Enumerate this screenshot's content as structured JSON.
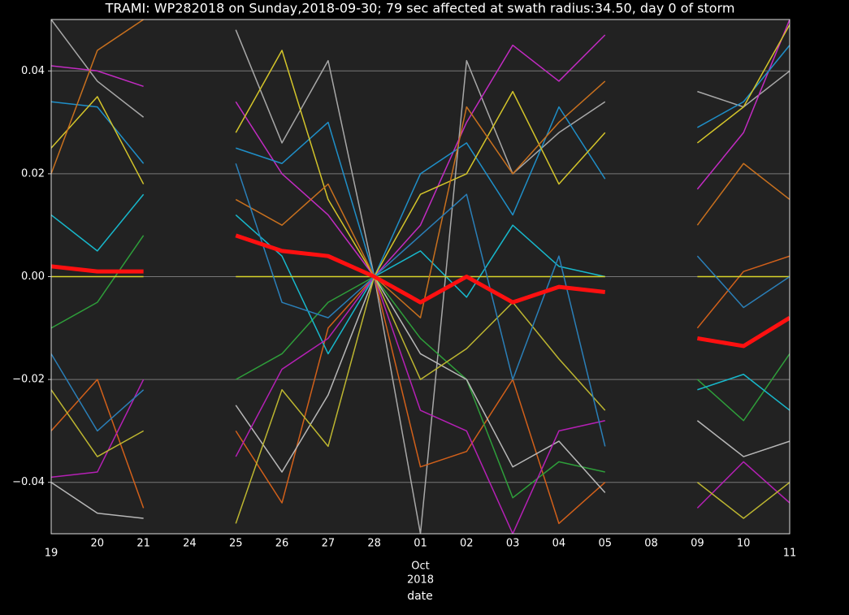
{
  "chart_data": {
    "type": "line",
    "title": "TRAMI: WP282018 on Sunday,2018-09-30; 79 sec affected at swath radius:34.50, day 0 of storm",
    "x_label": "date",
    "categories": [
      "19",
      "20",
      "21",
      "24",
      "25",
      "26",
      "27",
      "28",
      "01",
      "02",
      "03",
      "04",
      "05",
      "08",
      "09",
      "10",
      "11"
    ],
    "x_month_label": "Oct",
    "x_year_label": "2018",
    "ylim": [
      -0.05,
      0.05
    ],
    "yticks": [
      {
        "value": -0.04,
        "label": "−0.04"
      },
      {
        "value": -0.02,
        "label": "−0.02"
      },
      {
        "value": 0,
        "label": "0.00"
      },
      0.02,
      0.04
    ],
    "grid": true,
    "series": [
      {
        "color": "#a8a8a8",
        "width": 1.5,
        "values": [
          0.05,
          0.038,
          0.031,
          null,
          0.048,
          0.026,
          0.042,
          0,
          -0.05,
          0.042,
          0.02,
          0.028,
          0.034,
          null,
          0.036,
          0.033,
          0.04
        ]
      },
      {
        "color": "#c22bc2",
        "width": 1.5,
        "values": [
          0.041,
          0.04,
          0.037,
          null,
          0.034,
          0.02,
          0.012,
          0,
          0.01,
          0.03,
          0.045,
          0.038,
          0.047,
          null,
          0.017,
          0.028,
          0.05
        ]
      },
      {
        "color": "#d2601a",
        "width": 1.5,
        "values": [
          -0.03,
          -0.02,
          -0.045,
          null,
          -0.03,
          -0.044,
          -0.01,
          0,
          -0.037,
          -0.034,
          -0.02,
          -0.048,
          -0.04,
          null,
          -0.01,
          0.001,
          0.004
        ]
      },
      {
        "color": "#1f8fc8",
        "width": 1.5,
        "values": [
          0.034,
          0.033,
          0.022,
          null,
          0.025,
          0.022,
          0.03,
          0,
          0.02,
          0.026,
          0.012,
          0.033,
          0.019,
          null,
          0.029,
          0.034,
          0.045
        ]
      },
      {
        "color": "#d4c52a",
        "width": 1.5,
        "values": [
          0.025,
          0.035,
          0.018,
          null,
          0.028,
          0.044,
          0.015,
          0,
          0.016,
          0.02,
          0.036,
          0.018,
          0.028,
          null,
          0.026,
          0.033,
          0.049
        ]
      },
      {
        "color": "#2e9e3a",
        "width": 1.5,
        "values": [
          -0.01,
          -0.005,
          0.008,
          null,
          -0.02,
          -0.015,
          -0.005,
          0,
          -0.012,
          -0.02,
          -0.043,
          -0.036,
          -0.038,
          null,
          -0.02,
          -0.028,
          -0.015
        ]
      },
      {
        "color": "#b8b8b8",
        "width": 1.5,
        "values": [
          -0.04,
          -0.046,
          -0.047,
          null,
          -0.025,
          -0.038,
          -0.023,
          0,
          -0.015,
          -0.02,
          -0.037,
          -0.032,
          -0.042,
          null,
          -0.028,
          -0.035,
          -0.032
        ]
      },
      {
        "color": "#17b8cc",
        "width": 1.5,
        "values": [
          0.012,
          0.005,
          0.016,
          null,
          0.012,
          0.004,
          -0.015,
          0,
          0.005,
          -0.004,
          0.01,
          0.002,
          0,
          null,
          -0.022,
          -0.019,
          -0.026
        ]
      },
      {
        "color": "#d8d42a",
        "width": 1.5,
        "values": [
          0,
          0,
          0,
          null,
          0,
          0,
          0,
          0,
          0,
          0,
          0,
          0,
          0,
          null,
          0,
          0,
          0
        ]
      },
      {
        "color": "#b520b5",
        "width": 1.5,
        "values": [
          -0.039,
          -0.038,
          -0.02,
          null,
          -0.035,
          -0.018,
          -0.012,
          0,
          -0.026,
          -0.03,
          -0.05,
          -0.03,
          -0.028,
          null,
          -0.045,
          -0.036,
          -0.044
        ]
      },
      {
        "color": "#c8701e",
        "width": 1.5,
        "values": [
          0.02,
          0.044,
          0.05,
          null,
          0.015,
          0.01,
          0.018,
          0,
          -0.008,
          0.033,
          0.02,
          0.03,
          0.038,
          null,
          0.01,
          0.022,
          0.015
        ]
      },
      {
        "color": "#bdb630",
        "width": 1.5,
        "values": [
          -0.022,
          -0.035,
          -0.03,
          null,
          -0.048,
          -0.022,
          -0.033,
          0,
          -0.02,
          -0.014,
          -0.005,
          -0.016,
          -0.026,
          null,
          -0.04,
          -0.047,
          -0.04
        ]
      },
      {
        "color": "#2a7fb8",
        "width": 1.5,
        "values": [
          -0.015,
          -0.03,
          -0.022,
          null,
          0.022,
          -0.005,
          -0.008,
          0,
          0.008,
          0.016,
          -0.02,
          0.004,
          -0.033,
          null,
          0.004,
          -0.006,
          0
        ]
      },
      {
        "color": "#ff1010",
        "width": 5,
        "values": [
          0.002,
          0.001,
          0.001,
          null,
          0.008,
          0.005,
          0.004,
          0,
          -0.005,
          0,
          -0.005,
          -0.002,
          -0.003,
          null,
          -0.012,
          -0.0135,
          -0.008
        ]
      }
    ]
  }
}
